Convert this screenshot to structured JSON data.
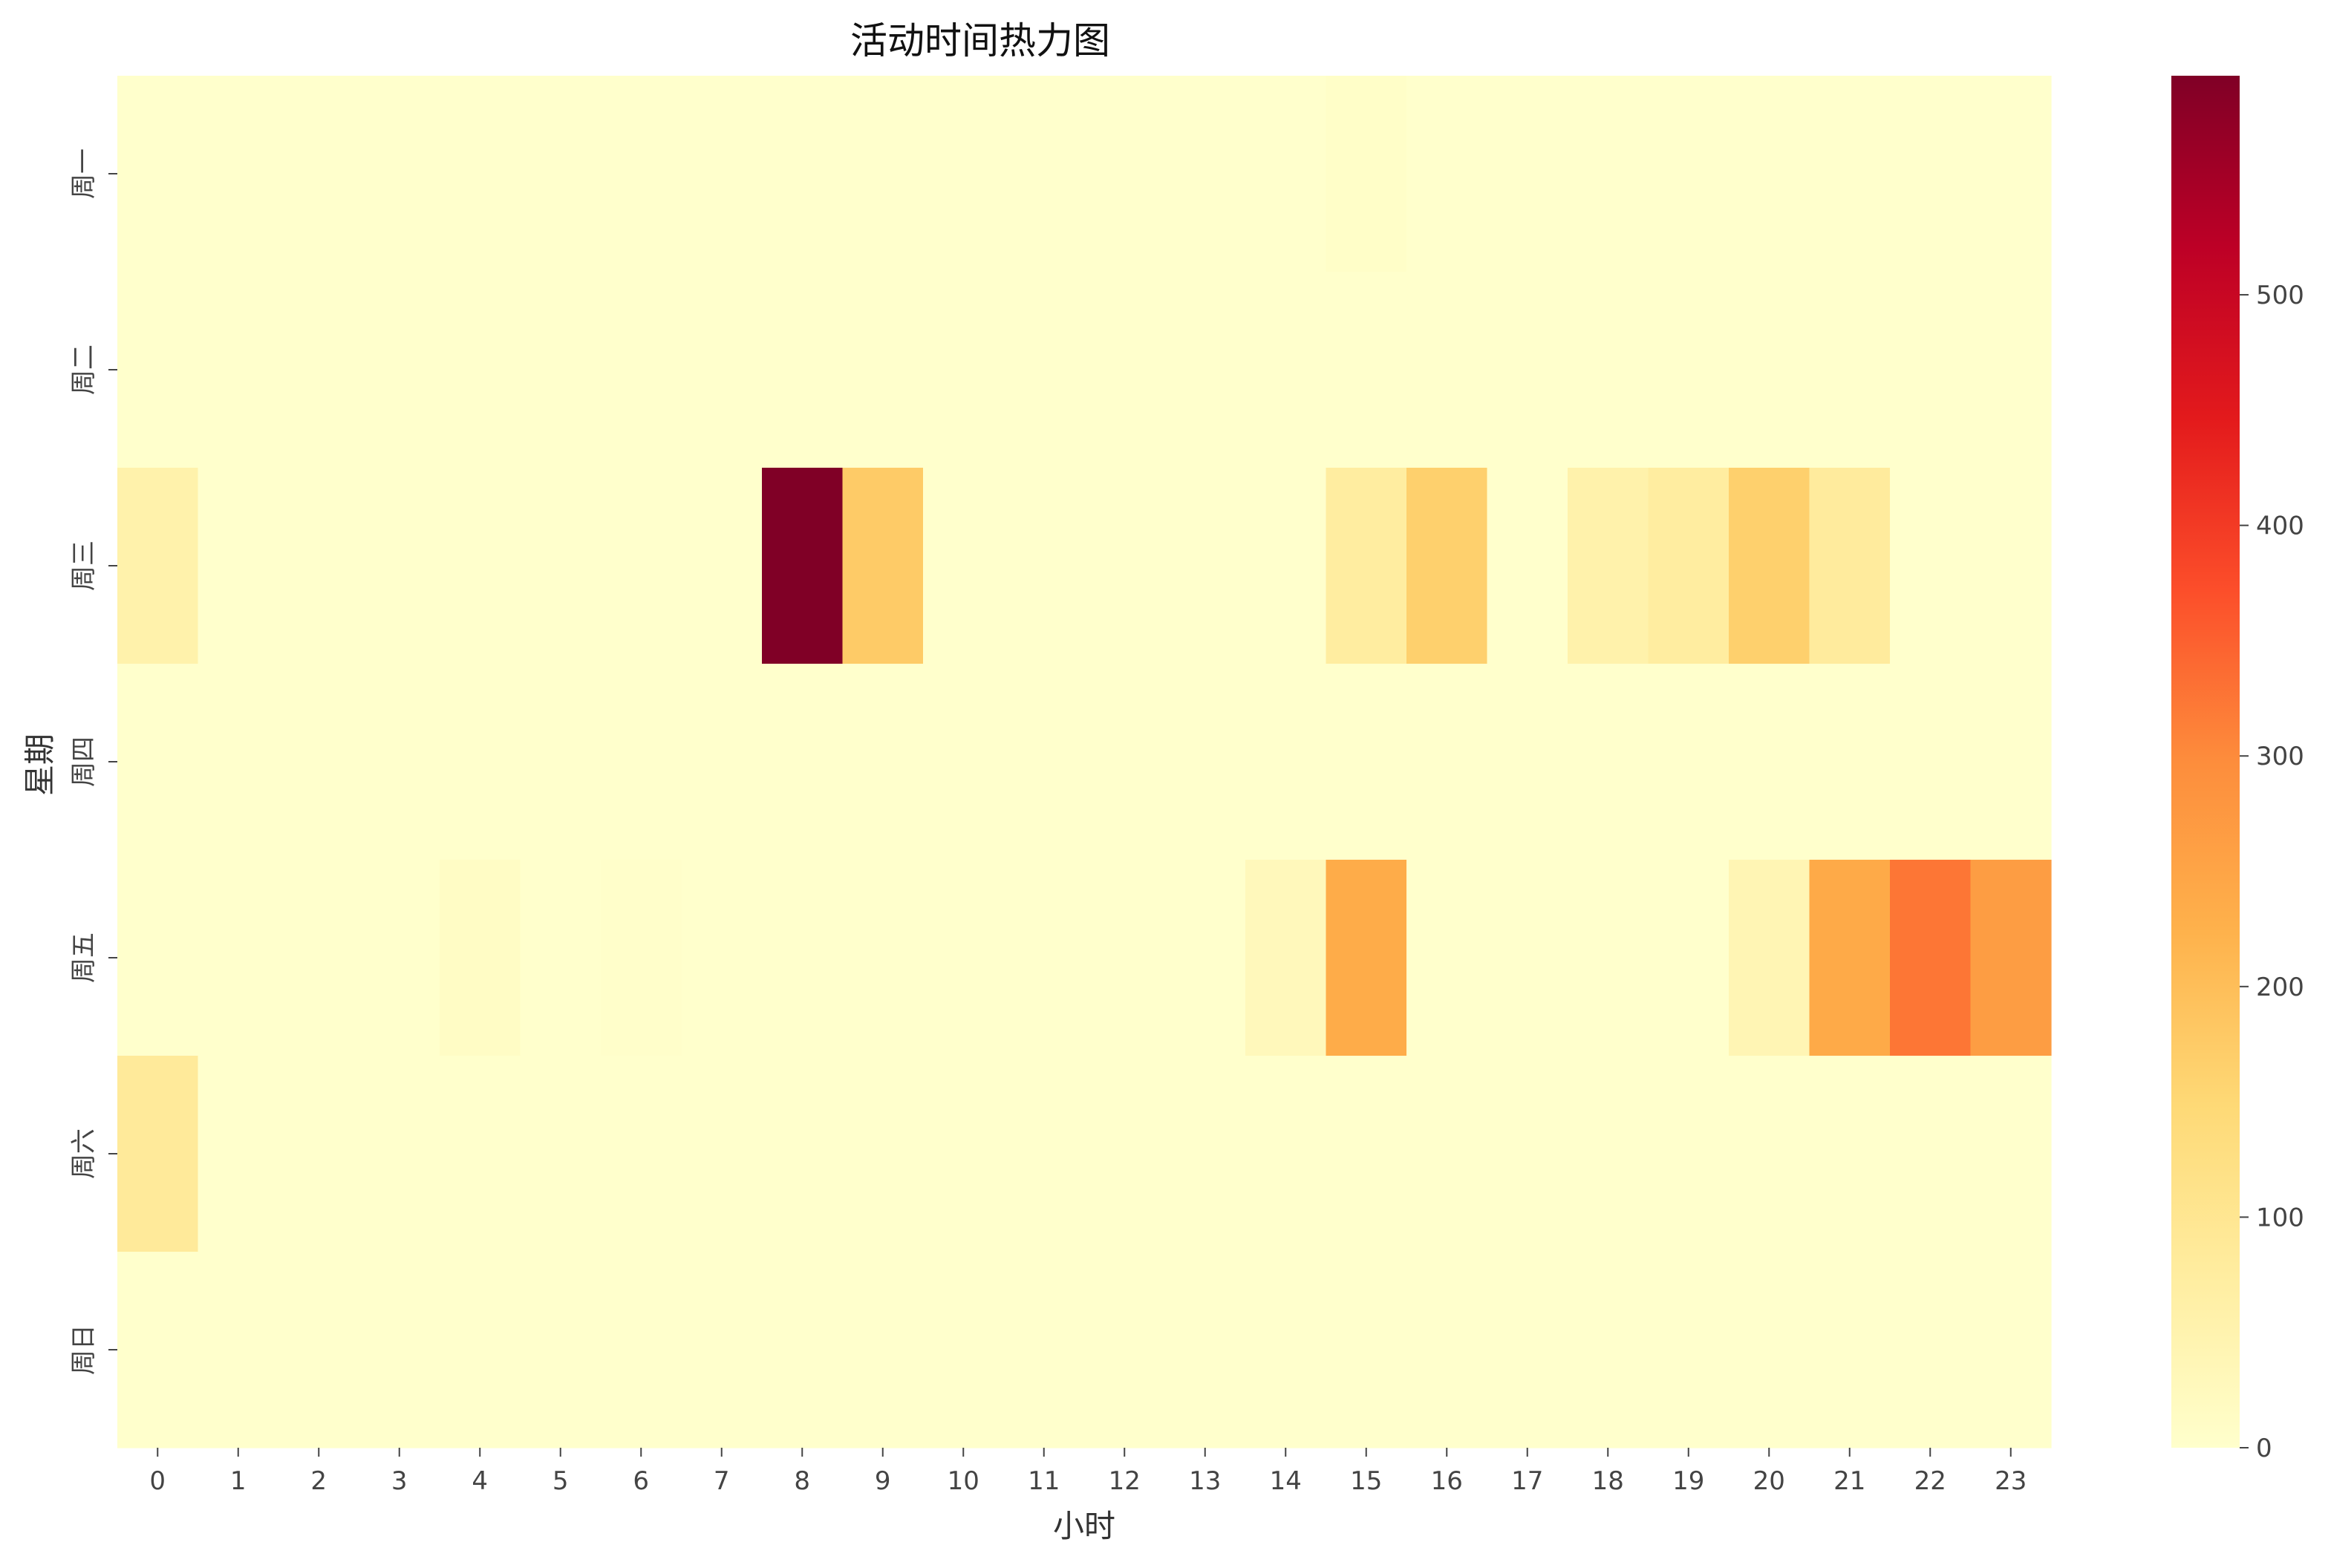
{
  "chart_data": {
    "type": "heatmap",
    "title": "活动时间热力图",
    "xlabel": "小时",
    "ylabel": "星期",
    "x_categories": [
      "0",
      "1",
      "2",
      "3",
      "4",
      "5",
      "6",
      "7",
      "8",
      "9",
      "10",
      "11",
      "12",
      "13",
      "14",
      "15",
      "16",
      "17",
      "18",
      "19",
      "20",
      "21",
      "22",
      "23"
    ],
    "y_categories": [
      "周一",
      "周二",
      "周三",
      "周四",
      "周五",
      "周六",
      "周日"
    ],
    "values": [
      [
        0,
        0,
        0,
        0,
        0,
        0,
        0,
        0,
        0,
        0,
        0,
        0,
        0,
        0,
        0,
        6,
        0,
        0,
        0,
        0,
        0,
        0,
        0,
        0
      ],
      [
        0,
        0,
        0,
        0,
        0,
        0,
        0,
        0,
        0,
        0,
        0,
        0,
        0,
        0,
        0,
        0,
        0,
        0,
        0,
        0,
        0,
        0,
        0,
        0
      ],
      [
        55,
        0,
        0,
        0,
        0,
        0,
        0,
        0,
        595,
        175,
        0,
        0,
        0,
        0,
        0,
        75,
        165,
        0,
        55,
        75,
        165,
        80,
        0,
        0
      ],
      [
        0,
        0,
        0,
        0,
        0,
        0,
        0,
        0,
        0,
        0,
        0,
        0,
        0,
        0,
        0,
        0,
        0,
        0,
        0,
        0,
        0,
        0,
        0,
        0
      ],
      [
        0,
        0,
        0,
        0,
        12,
        0,
        4,
        0,
        0,
        0,
        0,
        0,
        0,
        0,
        28,
        235,
        0,
        0,
        0,
        0,
        40,
        240,
        325,
        265
      ],
      [
        85,
        0,
        0,
        0,
        0,
        0,
        0,
        0,
        0,
        0,
        0,
        0,
        0,
        0,
        0,
        0,
        0,
        0,
        0,
        0,
        0,
        0,
        0,
        0
      ],
      [
        0,
        0,
        0,
        0,
        0,
        0,
        0,
        0,
        0,
        0,
        0,
        0,
        0,
        0,
        0,
        0,
        0,
        0,
        0,
        0,
        0,
        0,
        0,
        0
      ]
    ],
    "colormap": "YlOrRd",
    "colormap_stops": [
      "#ffffcc",
      "#ffeda0",
      "#fed976",
      "#feb24c",
      "#fd8d3c",
      "#fc4e2a",
      "#e31a1c",
      "#bd0026",
      "#800026"
    ],
    "value_range": [
      0,
      595
    ],
    "colorbar_ticks": [
      0,
      100,
      200,
      300,
      400,
      500
    ],
    "grid": false
  }
}
